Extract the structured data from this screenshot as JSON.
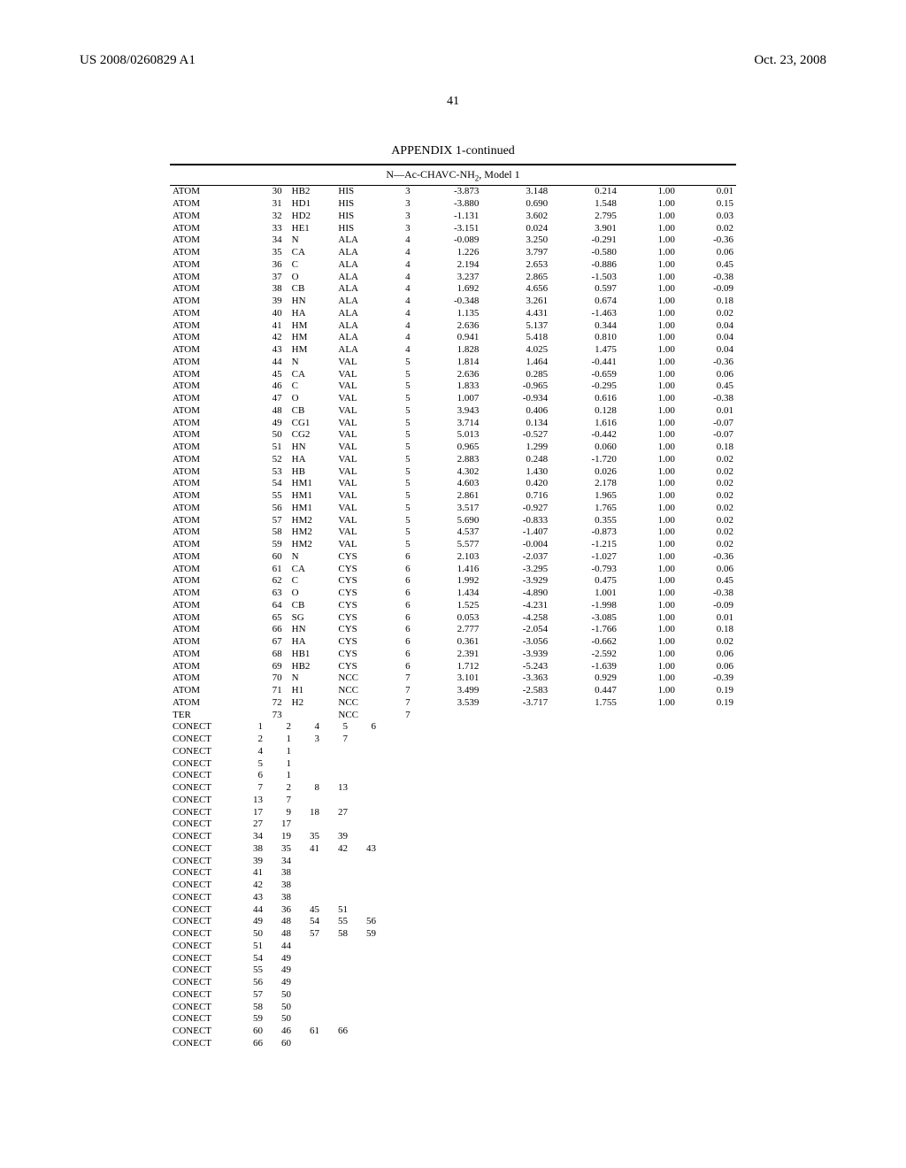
{
  "header": {
    "pub_id": "US 2008/0260829 A1",
    "pub_date": "Oct. 23, 2008"
  },
  "page_number": "41",
  "appendix_title": "APPENDIX 1-continued",
  "model_title_prefix": "N—Ac-CHAVC-NH",
  "model_title_sub": "2",
  "model_title_suffix": ", Model 1",
  "columns": [
    "record",
    "serial",
    "atom",
    "res",
    "chain",
    "x",
    "y",
    "z",
    "occ",
    "bf"
  ],
  "atom_rows": [
    [
      "ATOM",
      "30",
      "HB2",
      "HIS",
      "3",
      "-3.873",
      "3.148",
      "0.214",
      "1.00",
      "0.01"
    ],
    [
      "ATOM",
      "31",
      "HD1",
      "HIS",
      "3",
      "-3.880",
      "0.690",
      "1.548",
      "1.00",
      "0.15"
    ],
    [
      "ATOM",
      "32",
      "HD2",
      "HIS",
      "3",
      "-1.131",
      "3.602",
      "2.795",
      "1.00",
      "0.03"
    ],
    [
      "ATOM",
      "33",
      "HE1",
      "HIS",
      "3",
      "-3.151",
      "0.024",
      "3.901",
      "1.00",
      "0.02"
    ],
    [
      "ATOM",
      "34",
      "N",
      "ALA",
      "4",
      "-0.089",
      "3.250",
      "-0.291",
      "1.00",
      "-0.36"
    ],
    [
      "ATOM",
      "35",
      "CA",
      "ALA",
      "4",
      "1.226",
      "3.797",
      "-0.580",
      "1.00",
      "0.06"
    ],
    [
      "ATOM",
      "36",
      "C",
      "ALA",
      "4",
      "2.194",
      "2.653",
      "-0.886",
      "1.00",
      "0.45"
    ],
    [
      "ATOM",
      "37",
      "O",
      "ALA",
      "4",
      "3.237",
      "2.865",
      "-1.503",
      "1.00",
      "-0.38"
    ],
    [
      "ATOM",
      "38",
      "CB",
      "ALA",
      "4",
      "1.692",
      "4.656",
      "0.597",
      "1.00",
      "-0.09"
    ],
    [
      "ATOM",
      "39",
      "HN",
      "ALA",
      "4",
      "-0.348",
      "3.261",
      "0.674",
      "1.00",
      "0.18"
    ],
    [
      "ATOM",
      "40",
      "HA",
      "ALA",
      "4",
      "1.135",
      "4.431",
      "-1.463",
      "1.00",
      "0.02"
    ],
    [
      "ATOM",
      "41",
      "HM",
      "ALA",
      "4",
      "2.636",
      "5.137",
      "0.344",
      "1.00",
      "0.04"
    ],
    [
      "ATOM",
      "42",
      "HM",
      "ALA",
      "4",
      "0.941",
      "5.418",
      "0.810",
      "1.00",
      "0.04"
    ],
    [
      "ATOM",
      "43",
      "HM",
      "ALA",
      "4",
      "1.828",
      "4.025",
      "1.475",
      "1.00",
      "0.04"
    ],
    [
      "ATOM",
      "44",
      "N",
      "VAL",
      "5",
      "1.814",
      "1.464",
      "-0.441",
      "1.00",
      "-0.36"
    ],
    [
      "ATOM",
      "45",
      "CA",
      "VAL",
      "5",
      "2.636",
      "0.285",
      "-0.659",
      "1.00",
      "0.06"
    ],
    [
      "ATOM",
      "46",
      "C",
      "VAL",
      "5",
      "1.833",
      "-0.965",
      "-0.295",
      "1.00",
      "0.45"
    ],
    [
      "ATOM",
      "47",
      "O",
      "VAL",
      "5",
      "1.007",
      "-0.934",
      "0.616",
      "1.00",
      "-0.38"
    ],
    [
      "ATOM",
      "48",
      "CB",
      "VAL",
      "5",
      "3.943",
      "0.406",
      "0.128",
      "1.00",
      "0.01"
    ],
    [
      "ATOM",
      "49",
      "CG1",
      "VAL",
      "5",
      "3.714",
      "0.134",
      "1.616",
      "1.00",
      "-0.07"
    ],
    [
      "ATOM",
      "50",
      "CG2",
      "VAL",
      "5",
      "5.013",
      "-0.527",
      "-0.442",
      "1.00",
      "-0.07"
    ],
    [
      "ATOM",
      "51",
      "HN",
      "VAL",
      "5",
      "0.965",
      "1.299",
      "0.060",
      "1.00",
      "0.18"
    ],
    [
      "ATOM",
      "52",
      "HA",
      "VAL",
      "5",
      "2.883",
      "0.248",
      "-1.720",
      "1.00",
      "0.02"
    ],
    [
      "ATOM",
      "53",
      "HB",
      "VAL",
      "5",
      "4.302",
      "1.430",
      "0.026",
      "1.00",
      "0.02"
    ],
    [
      "ATOM",
      "54",
      "HM1",
      "VAL",
      "5",
      "4.603",
      "0.420",
      "2.178",
      "1.00",
      "0.02"
    ],
    [
      "ATOM",
      "55",
      "HM1",
      "VAL",
      "5",
      "2.861",
      "0.716",
      "1.965",
      "1.00",
      "0.02"
    ],
    [
      "ATOM",
      "56",
      "HM1",
      "VAL",
      "5",
      "3.517",
      "-0.927",
      "1.765",
      "1.00",
      "0.02"
    ],
    [
      "ATOM",
      "57",
      "HM2",
      "VAL",
      "5",
      "5.690",
      "-0.833",
      "0.355",
      "1.00",
      "0.02"
    ],
    [
      "ATOM",
      "58",
      "HM2",
      "VAL",
      "5",
      "4.537",
      "-1.407",
      "-0.873",
      "1.00",
      "0.02"
    ],
    [
      "ATOM",
      "59",
      "HM2",
      "VAL",
      "5",
      "5.577",
      "-0.004",
      "-1.215",
      "1.00",
      "0.02"
    ],
    [
      "ATOM",
      "60",
      "N",
      "CYS",
      "6",
      "2.103",
      "-2.037",
      "-1.027",
      "1.00",
      "-0.36"
    ],
    [
      "ATOM",
      "61",
      "CA",
      "CYS",
      "6",
      "1.416",
      "-3.295",
      "-0.793",
      "1.00",
      "0.06"
    ],
    [
      "ATOM",
      "62",
      "C",
      "CYS",
      "6",
      "1.992",
      "-3.929",
      "0.475",
      "1.00",
      "0.45"
    ],
    [
      "ATOM",
      "63",
      "O",
      "CYS",
      "6",
      "1.434",
      "-4.890",
      "1.001",
      "1.00",
      "-0.38"
    ],
    [
      "ATOM",
      "64",
      "CB",
      "CYS",
      "6",
      "1.525",
      "-4.231",
      "-1.998",
      "1.00",
      "-0.09"
    ],
    [
      "ATOM",
      "65",
      "SG",
      "CYS",
      "6",
      "0.053",
      "-4.258",
      "-3.085",
      "1.00",
      "0.01"
    ],
    [
      "ATOM",
      "66",
      "HN",
      "CYS",
      "6",
      "2.777",
      "-2.054",
      "-1.766",
      "1.00",
      "0.18"
    ],
    [
      "ATOM",
      "67",
      "HA",
      "CYS",
      "6",
      "0.361",
      "-3.056",
      "-0.662",
      "1.00",
      "0.02"
    ],
    [
      "ATOM",
      "68",
      "HB1",
      "CYS",
      "6",
      "2.391",
      "-3.939",
      "-2.592",
      "1.00",
      "0.06"
    ],
    [
      "ATOM",
      "69",
      "HB2",
      "CYS",
      "6",
      "1.712",
      "-5.243",
      "-1.639",
      "1.00",
      "0.06"
    ],
    [
      "ATOM",
      "70",
      "N",
      "NCC",
      "7",
      "3.101",
      "-3.363",
      "0.929",
      "1.00",
      "-0.39"
    ],
    [
      "ATOM",
      "71",
      "H1",
      "NCC",
      "7",
      "3.499",
      "-2.583",
      "0.447",
      "1.00",
      "0.19"
    ],
    [
      "ATOM",
      "72",
      "H2",
      "NCC",
      "7",
      "3.539",
      "-3.717",
      "1.755",
      "1.00",
      "0.19"
    ],
    [
      "TER",
      "73",
      "",
      "NCC",
      "7",
      "",
      "",
      "",
      "",
      ""
    ]
  ],
  "conect_rows": [
    [
      "CONECT",
      "1",
      "2",
      "4",
      "5",
      "6"
    ],
    [
      "CONECT",
      "2",
      "1",
      "3",
      "7",
      ""
    ],
    [
      "CONECT",
      "4",
      "1",
      "",
      "",
      ""
    ],
    [
      "CONECT",
      "5",
      "1",
      "",
      "",
      ""
    ],
    [
      "CONECT",
      "6",
      "1",
      "",
      "",
      ""
    ],
    [
      "CONECT",
      "7",
      "2",
      "8",
      "13",
      ""
    ],
    [
      "CONECT",
      "13",
      "7",
      "",
      "",
      ""
    ],
    [
      "CONECT",
      "17",
      "9",
      "18",
      "27",
      ""
    ],
    [
      "CONECT",
      "27",
      "17",
      "",
      "",
      ""
    ],
    [
      "CONECT",
      "34",
      "19",
      "35",
      "39",
      ""
    ],
    [
      "CONECT",
      "38",
      "35",
      "41",
      "42",
      "43"
    ],
    [
      "CONECT",
      "39",
      "34",
      "",
      "",
      ""
    ],
    [
      "CONECT",
      "41",
      "38",
      "",
      "",
      ""
    ],
    [
      "CONECT",
      "42",
      "38",
      "",
      "",
      ""
    ],
    [
      "CONECT",
      "43",
      "38",
      "",
      "",
      ""
    ],
    [
      "CONECT",
      "44",
      "36",
      "45",
      "51",
      ""
    ],
    [
      "CONECT",
      "49",
      "48",
      "54",
      "55",
      "56"
    ],
    [
      "CONECT",
      "50",
      "48",
      "57",
      "58",
      "59"
    ],
    [
      "CONECT",
      "51",
      "44",
      "",
      "",
      ""
    ],
    [
      "CONECT",
      "54",
      "49",
      "",
      "",
      ""
    ],
    [
      "CONECT",
      "55",
      "49",
      "",
      "",
      ""
    ],
    [
      "CONECT",
      "56",
      "49",
      "",
      "",
      ""
    ],
    [
      "CONECT",
      "57",
      "50",
      "",
      "",
      ""
    ],
    [
      "CONECT",
      "58",
      "50",
      "",
      "",
      ""
    ],
    [
      "CONECT",
      "59",
      "50",
      "",
      "",
      ""
    ],
    [
      "CONECT",
      "60",
      "46",
      "61",
      "66",
      ""
    ],
    [
      "CONECT",
      "66",
      "60",
      "",
      "",
      ""
    ]
  ]
}
